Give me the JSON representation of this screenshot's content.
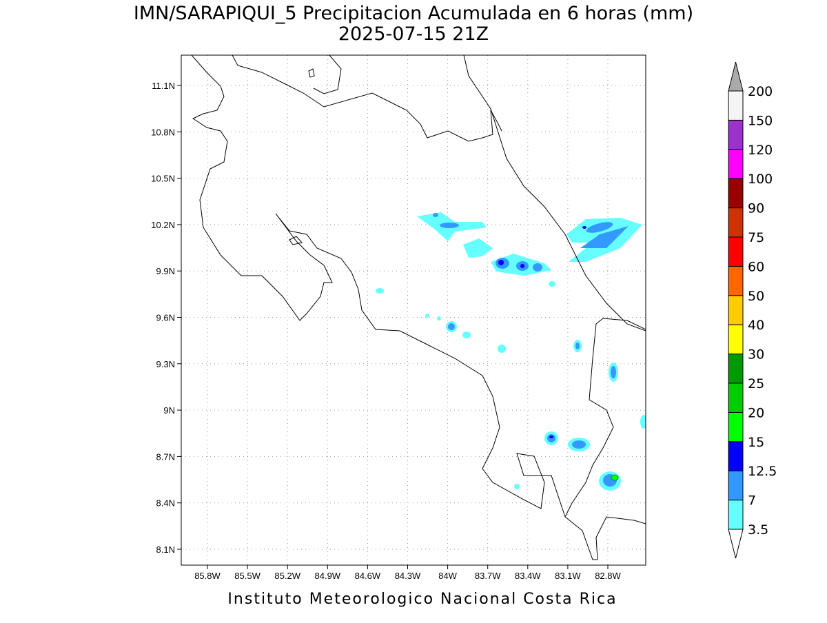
{
  "title": "IMN/SARAPIQUI_5 Precipitacion Acumulada en 6 horas (mm)",
  "subtitle": "2025-07-15 21Z",
  "footer": "Instituto Meteorologico Nacional Costa Rica",
  "x_tick_labels": [
    "85.8W",
    "85.5W",
    "85.2W",
    "84.9W",
    "84.6W",
    "84.3W",
    "84W",
    "83.7W",
    "83.4W",
    "83.1W",
    "82.8W"
  ],
  "y_tick_labels": [
    "11.1N",
    "10.8N",
    "10.5N",
    "10.2N",
    "9.9N",
    "9.6N",
    "9.3N",
    "9N",
    "8.7N",
    "8.4N",
    "8.1N"
  ],
  "grid": true,
  "colorbar": {
    "levels": [
      3.5,
      7,
      12.5,
      15,
      20,
      25,
      30,
      40,
      50,
      60,
      75,
      90,
      100,
      120,
      150,
      200
    ],
    "colors": [
      "#66ffff",
      "#3399ff",
      "#0000ff",
      "#00ff00",
      "#00cc00",
      "#009900",
      "#ffff00",
      "#ffcc00",
      "#ff6600",
      "#ff0000",
      "#cc3300",
      "#990000",
      "#ff00ff",
      "#9933cc",
      "#f5f5f5"
    ],
    "under_color": "#ffffff",
    "over_color": "#aaaaaa"
  }
}
